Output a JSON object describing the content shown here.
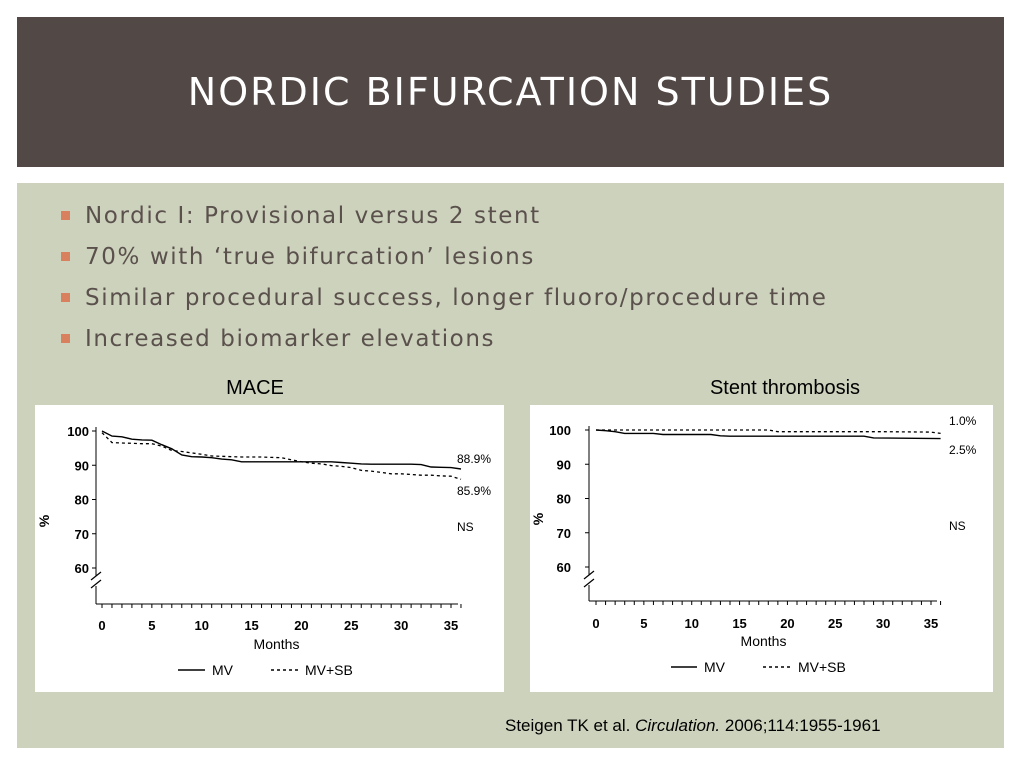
{
  "slide": {
    "title": "NORDIC BIFURCATION STUDIES",
    "bullets": [
      "Nordic I: Provisional versus 2 stent",
      "70% with ‘true bifurcation’ lesions",
      "Similar procedural success, longer fluoro/procedure time",
      "Increased biomarker elevations"
    ],
    "citation": {
      "authors": "Steigen TK et al. ",
      "journal": "Circulation.",
      "ref": " 2006;114:1955-1961"
    },
    "colors": {
      "title_bg": "#524846",
      "content_bg": "#cdd2bd",
      "bullet": "#d9805e"
    }
  },
  "chart_data": [
    {
      "type": "line",
      "title": "MACE",
      "xlabel": "Months",
      "ylabel": "%",
      "xlim": [
        0,
        36
      ],
      "ylim": [
        60,
        100
      ],
      "xticks": [
        0,
        5,
        10,
        15,
        20,
        25,
        30,
        35
      ],
      "yticks": [
        60,
        70,
        80,
        90,
        100
      ],
      "axis_break": true,
      "annotations": [
        "88.9%",
        "85.9%",
        "NS"
      ],
      "legend_position": "bottom",
      "series": [
        {
          "name": "MV",
          "style": "solid",
          "x": [
            0,
            1,
            2,
            3,
            4,
            5,
            6,
            7,
            8,
            9,
            10,
            11,
            12,
            13,
            14,
            15,
            16,
            17,
            18,
            19,
            20,
            21,
            22,
            23,
            24,
            25,
            26,
            27,
            28,
            29,
            30,
            31,
            32,
            33,
            34,
            35,
            36
          ],
          "y": [
            100,
            98.5,
            98.3,
            97.6,
            97.4,
            97.3,
            96,
            94.8,
            93,
            92.5,
            92.4,
            92.2,
            91.8,
            91.6,
            91,
            91,
            91,
            91,
            91,
            91,
            91,
            91,
            91,
            91,
            90.8,
            90.6,
            90.4,
            90.3,
            90.3,
            90.3,
            90.3,
            90.3,
            90.2,
            89.5,
            89.4,
            89.3,
            88.9
          ]
        },
        {
          "name": "MV+SB",
          "style": "dashed",
          "x": [
            0,
            1,
            2,
            3,
            4,
            5,
            6,
            7,
            8,
            9,
            10,
            11,
            12,
            13,
            14,
            15,
            16,
            17,
            18,
            19,
            20,
            21,
            22,
            23,
            24,
            25,
            26,
            27,
            28,
            29,
            30,
            31,
            32,
            33,
            34,
            35,
            36
          ],
          "y": [
            99.5,
            96.6,
            96.5,
            96.4,
            96.3,
            96.3,
            95.6,
            94.3,
            94,
            93.6,
            93.2,
            92.7,
            92.6,
            92.5,
            92.4,
            92.4,
            92.4,
            92.3,
            92.2,
            91.6,
            91,
            90.6,
            90.4,
            89.9,
            89.7,
            89.3,
            88.5,
            88.3,
            87.9,
            87.5,
            87.5,
            87.3,
            87.1,
            87.1,
            86.9,
            86.8,
            85.9
          ]
        }
      ]
    },
    {
      "type": "line",
      "title": "Stent thrombosis",
      "xlabel": "Months",
      "ylabel": "%",
      "xlim": [
        0,
        36
      ],
      "ylim": [
        60,
        100
      ],
      "xticks": [
        0,
        5,
        10,
        15,
        20,
        25,
        30,
        35
      ],
      "yticks": [
        60,
        70,
        80,
        90,
        100
      ],
      "axis_break": true,
      "annotations": [
        "1.0%",
        "2.5%",
        "NS"
      ],
      "legend_position": "bottom",
      "series": [
        {
          "name": "MV",
          "style": "solid",
          "x": [
            0,
            1,
            2,
            3,
            6,
            7,
            10,
            12,
            13,
            14,
            20,
            25,
            28,
            29,
            36
          ],
          "y": [
            100,
            99.8,
            99.5,
            99,
            99,
            98.7,
            98.7,
            98.7,
            98.3,
            98.2,
            98.2,
            98.2,
            98.2,
            97.7,
            97.5
          ]
        },
        {
          "name": "MV+SB",
          "style": "dashed",
          "x": [
            0,
            3,
            10,
            15,
            18,
            19,
            25,
            30,
            35,
            36
          ],
          "y": [
            100,
            100,
            100,
            100,
            100,
            99.5,
            99.5,
            99.5,
            99.4,
            99
          ]
        }
      ]
    }
  ]
}
